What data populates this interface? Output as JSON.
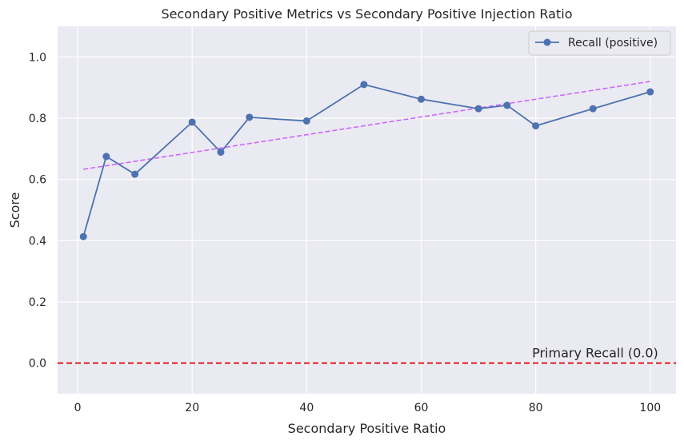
{
  "chart_data": {
    "type": "line",
    "title": "Secondary Positive Metrics vs Secondary Positive Injection Ratio",
    "xlabel": "Secondary Positive Ratio",
    "ylabel": "Score",
    "xlim": [
      -3.5,
      104.5
    ],
    "ylim": [
      -0.1,
      1.1
    ],
    "xticks": [
      0,
      20,
      40,
      60,
      80,
      100
    ],
    "yticks": [
      0.0,
      0.2,
      0.4,
      0.6,
      0.8,
      1.0
    ],
    "xtick_labels": [
      "0",
      "20",
      "40",
      "60",
      "80",
      "100"
    ],
    "ytick_labels": [
      "0.0",
      "0.2",
      "0.4",
      "0.6",
      "0.8",
      "1.0"
    ],
    "grid": true,
    "legend_position": "top-right",
    "series": [
      {
        "name": "Recall (positive)",
        "color": "#4c72b0",
        "marker": "circle",
        "x": [
          1,
          5,
          10,
          20,
          25,
          30,
          40,
          50,
          60,
          70,
          75,
          80,
          90,
          100
        ],
        "values": [
          0.413,
          0.675,
          0.617,
          0.787,
          0.689,
          0.803,
          0.791,
          0.91,
          0.862,
          0.831,
          0.842,
          0.775,
          0.831,
          0.886
        ]
      }
    ],
    "trendline": {
      "color": "#cc66ff",
      "style": "dashed",
      "x": [
        1,
        100
      ],
      "values": [
        0.633,
        0.92
      ]
    },
    "reference_line": {
      "y": 0.0,
      "color": "#dd1111",
      "style": "dashed",
      "label": "Primary Recall (0.0)"
    }
  }
}
